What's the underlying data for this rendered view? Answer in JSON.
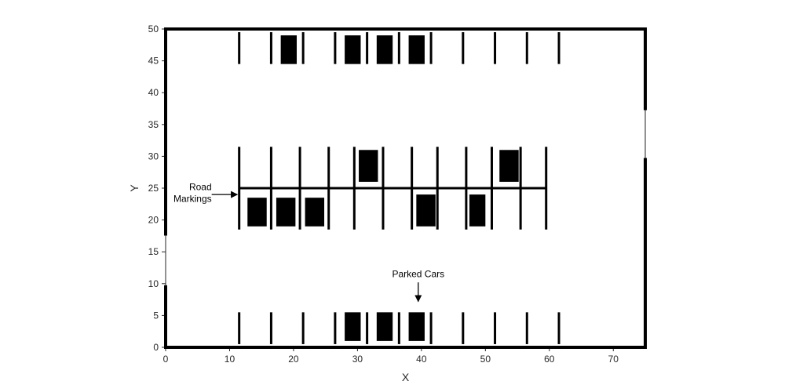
{
  "chart_data": {
    "type": "diagram",
    "xlabel": "X",
    "ylabel": "Y",
    "xlim": [
      0,
      75
    ],
    "ylim": [
      0,
      50
    ],
    "xticks": [
      0,
      10,
      20,
      30,
      40,
      50,
      60,
      70
    ],
    "yticks": [
      0,
      5,
      10,
      15,
      20,
      25,
      30,
      35,
      40,
      45,
      50
    ],
    "walls": [
      {
        "x1": 0,
        "y1": 0,
        "x2": 75,
        "y2": 0
      },
      {
        "x1": 0,
        "y1": 50,
        "x2": 75,
        "y2": 50
      },
      {
        "x1": 0,
        "y1": 0,
        "x2": 0,
        "y2": 9.5
      },
      {
        "x1": 0,
        "y1": 17.8,
        "x2": 0,
        "y2": 50
      },
      {
        "x1": 75,
        "y1": 0,
        "x2": 75,
        "y2": 29.5
      },
      {
        "x1": 75,
        "y1": 37.5,
        "x2": 75,
        "y2": 50
      }
    ],
    "road_markings": {
      "center_line": {
        "x1": 11.5,
        "x2": 59.5,
        "y": 25
      },
      "center_dividers_x": [
        11.5,
        16.5,
        21,
        25.5,
        29.5,
        34,
        38.5,
        42.5,
        47,
        51,
        55.5,
        59.5
      ],
      "center_divider_y": [
        18.5,
        31.5
      ],
      "top_dividers_x": [
        11.5,
        16.5,
        21.5,
        26.5,
        31.5,
        36.5,
        41.5,
        46.5,
        51.5,
        56.5,
        61.5
      ],
      "top_divider_y": [
        44.5,
        49.5
      ],
      "bottom_dividers_x": [
        11.5,
        16.5,
        21.5,
        26.5,
        31.5,
        36.5,
        41.5,
        46.5,
        51.5,
        56.5,
        61.5
      ],
      "bottom_divider_y": [
        0.5,
        5.5
      ]
    },
    "parked_cars": [
      {
        "x": 18,
        "y": 44.5,
        "w": 2.5,
        "h": 4.5
      },
      {
        "x": 28,
        "y": 44.5,
        "w": 2.5,
        "h": 4.5
      },
      {
        "x": 33,
        "y": 44.5,
        "w": 2.5,
        "h": 4.5
      },
      {
        "x": 38,
        "y": 44.5,
        "w": 2.5,
        "h": 4.5
      },
      {
        "x": 30.2,
        "y": 26,
        "w": 3,
        "h": 5
      },
      {
        "x": 52.2,
        "y": 26,
        "w": 3,
        "h": 5
      },
      {
        "x": 12.8,
        "y": 19,
        "w": 3,
        "h": 4.5
      },
      {
        "x": 17.3,
        "y": 19,
        "w": 3,
        "h": 4.5
      },
      {
        "x": 21.8,
        "y": 19,
        "w": 3,
        "h": 4.5
      },
      {
        "x": 39.2,
        "y": 19,
        "w": 3,
        "h": 5
      },
      {
        "x": 47.5,
        "y": 19,
        "w": 2.5,
        "h": 5
      },
      {
        "x": 28,
        "y": 1,
        "w": 2.5,
        "h": 4.5
      },
      {
        "x": 33,
        "y": 1,
        "w": 2.5,
        "h": 4.5
      },
      {
        "x": 38,
        "y": 1,
        "w": 2.5,
        "h": 4.5
      }
    ],
    "annotations": [
      {
        "name": "road-markings",
        "lines": [
          "Road",
          "Markings"
        ],
        "text_x": 7.2,
        "text_y": 24.1,
        "arrow_from": [
          7.2,
          24
        ],
        "arrow_to": [
          11.2,
          24
        ]
      },
      {
        "name": "parked-cars",
        "lines": [
          "Parked Cars"
        ],
        "text_x": 39.5,
        "text_y": 11,
        "arrow_from": [
          39.5,
          10.2
        ],
        "arrow_to": [
          39.5,
          7.2
        ]
      }
    ]
  }
}
